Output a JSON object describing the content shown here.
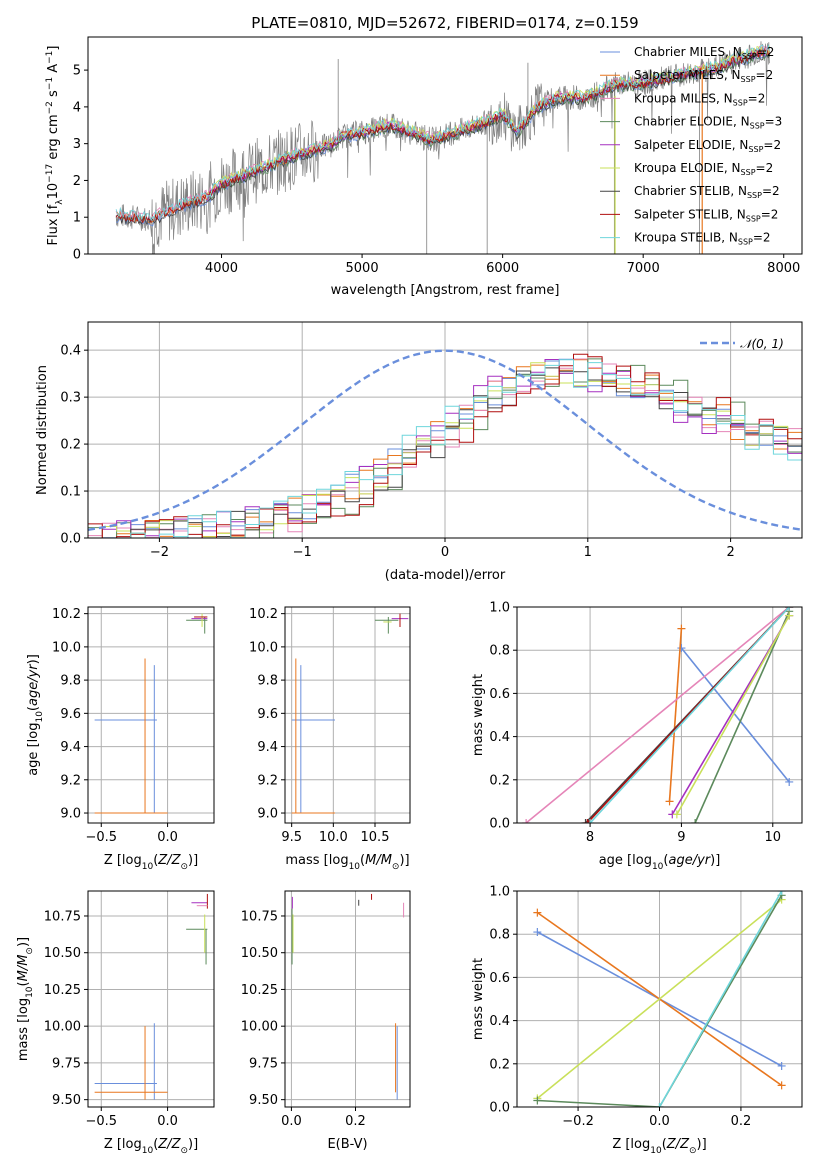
{
  "colors": {
    "chabrier_miles": "#6a8fdc",
    "salpeter_miles": "#e8771f",
    "kroupa_miles": "#e585b8",
    "chabrier_elodie": "#5c8a5c",
    "salpeter_elodie": "#a530c0",
    "kroupa_elodie": "#c9e05a",
    "chabrier_stelib": "#444444",
    "salpeter_stelib": "#b00f0f",
    "kroupa_stelib": "#6fd6dc",
    "data": "#808080"
  },
  "chart_data": [
    {
      "type": "line",
      "title": "PLATE=0810, MJD=52672, FIBERID=0174, z=0.159",
      "xlabel": "wavelength [Angstrom, rest frame]",
      "ylabel": "Flux [f$_\\lambda$10$^{-17}$ erg cm$^{-2}$ s$^{-1}$ A$^{-1}$]",
      "xlim": [
        3050,
        8130
      ],
      "ylim": [
        0,
        5.9
      ],
      "xticks": [
        "4000",
        "5000",
        "6000",
        "7000",
        "8000"
      ],
      "yticks": [
        "0",
        "1",
        "2",
        "3",
        "4",
        "5"
      ],
      "grid": false,
      "legend_position": "upper right",
      "legend": [
        {
          "key": "chabrier_miles",
          "name": "Chabrier MILES, N",
          "sub": "SSP",
          "tail": "=2"
        },
        {
          "key": "salpeter_miles",
          "name": "Salpeter MILES, N",
          "sub": "SSP",
          "tail": "=2"
        },
        {
          "key": "kroupa_miles",
          "name": "Kroupa MILES, N",
          "sub": "SSP",
          "tail": "=2"
        },
        {
          "key": "chabrier_elodie",
          "name": "Chabrier ELODIE, N",
          "sub": "SSP",
          "tail": "=3"
        },
        {
          "key": "salpeter_elodie",
          "name": "Salpeter ELODIE, N",
          "sub": "SSP",
          "tail": "=2"
        },
        {
          "key": "kroupa_elodie",
          "name": "Kroupa ELODIE, N",
          "sub": "SSP",
          "tail": "=2"
        },
        {
          "key": "chabrier_stelib",
          "name": "Chabrier STELIB, N",
          "sub": "SSP",
          "tail": "=2"
        },
        {
          "key": "salpeter_stelib",
          "name": "Salpeter STELIB, N",
          "sub": "SSP",
          "tail": "=2"
        },
        {
          "key": "kroupa_stelib",
          "name": "Kroupa STELIB, N",
          "sub": "SSP",
          "tail": "=2"
        }
      ],
      "continuum": {
        "x": [
          3250,
          3500,
          3700,
          3900,
          4000,
          4200,
          4500,
          4800,
          4850,
          5000,
          5200,
          5500,
          5700,
          5900,
          6000,
          6100,
          6250,
          6400,
          6600,
          6800,
          7000,
          7200,
          7500,
          7800,
          7900
        ],
        "y": [
          1.05,
          0.95,
          1.3,
          1.55,
          1.9,
          2.2,
          2.65,
          3.0,
          3.2,
          3.3,
          3.5,
          3.1,
          3.35,
          3.6,
          3.8,
          3.3,
          4.0,
          4.25,
          4.25,
          4.6,
          4.65,
          4.8,
          5.05,
          5.45,
          5.5
        ]
      }
    },
    {
      "type": "line",
      "xlabel": "(data-model)/error",
      "ylabel": "Normed distribution",
      "xlim": [
        -2.5,
        2.5
      ],
      "ylim": [
        0,
        0.46
      ],
      "xticks": [
        "−2",
        "−1",
        "0",
        "1",
        "2"
      ],
      "yticks": [
        "0.0",
        "0.1",
        "0.2",
        "0.3",
        "0.4"
      ],
      "grid": true,
      "legend_position": "upper right",
      "legend": [
        {
          "name": "𝒩(0, 1)",
          "style": "dashed"
        }
      ],
      "series": [
        {
          "key": "chabrier_stelib",
          "x": [
            -2.4,
            -2.0,
            -1.6,
            -1.2,
            -0.8,
            -0.4,
            0.0,
            0.3,
            0.6,
            0.9,
            1.2,
            1.5,
            1.8,
            2.1,
            2.4
          ],
          "y": [
            0.0,
            0.01,
            0.02,
            0.04,
            0.07,
            0.14,
            0.22,
            0.3,
            0.34,
            0.36,
            0.34,
            0.31,
            0.27,
            0.24,
            0.2
          ]
        }
      ]
    },
    {
      "type": "scatter",
      "xlabel": "Z [log$_{10}$(Z/Z$_\\odot$)]",
      "ylabel": "age  [log$_{10}$(age/yr)]",
      "xlim": [
        -0.6,
        0.35
      ],
      "ylim": [
        8.94,
        10.24
      ],
      "xticks": [
        "−0.5",
        "0.0"
      ],
      "yticks": [
        "9.0",
        "9.2",
        "9.4",
        "9.6",
        "9.8",
        "10.0",
        "10.2"
      ],
      "grid": true
    },
    {
      "type": "scatter",
      "xlabel": "mass [log$_{10}$(M/M$_\\odot$)]",
      "xlim": [
        9.42,
        10.92
      ],
      "ylim": [
        8.94,
        10.24
      ],
      "xticks": [
        "9.5",
        "10.0",
        "10.5"
      ],
      "yticks": [
        "9.0",
        "9.2",
        "9.4",
        "9.6",
        "9.8",
        "10.0",
        "10.2"
      ],
      "grid": true
    },
    {
      "type": "line",
      "xlabel": "age  [log$_{10}$(age/yr)]",
      "ylabel": "mass weight",
      "xlim": [
        7.2,
        10.32
      ],
      "ylim": [
        0,
        1.0
      ],
      "xticks": [
        "8",
        "9",
        "10"
      ],
      "yticks": [
        "0.0",
        "0.2",
        "0.4",
        "0.6",
        "0.8",
        "1.0"
      ],
      "grid": true,
      "series": [
        {
          "key": "chabrier_miles",
          "x": [
            9.0,
            10.18
          ],
          "y": [
            0.81,
            0.19
          ]
        },
        {
          "key": "salpeter_miles",
          "x": [
            8.87,
            9.0
          ],
          "y": [
            0.1,
            0.9
          ]
        },
        {
          "key": "kroupa_miles",
          "x": [
            7.3,
            10.18
          ],
          "y": [
            0.0,
            1.0
          ]
        },
        {
          "key": "chabrier_elodie",
          "x": [
            9.15,
            10.18
          ],
          "y": [
            0.0,
            0.98
          ]
        },
        {
          "key": "salpeter_elodie",
          "x": [
            8.9,
            10.18
          ],
          "y": [
            0.04,
            0.96
          ]
        },
        {
          "key": "kroupa_elodie",
          "x": [
            8.95,
            10.18
          ],
          "y": [
            0.04,
            0.96
          ]
        },
        {
          "key": "chabrier_stelib",
          "x": [
            7.95,
            10.18
          ],
          "y": [
            0.0,
            1.0
          ]
        },
        {
          "key": "salpeter_stelib",
          "x": [
            7.97,
            10.18
          ],
          "y": [
            0.0,
            1.0
          ]
        },
        {
          "key": "kroupa_stelib",
          "x": [
            8.0,
            10.18
          ],
          "y": [
            0.0,
            1.0
          ]
        }
      ]
    },
    {
      "type": "scatter",
      "xlabel": "Z [log$_{10}$(Z/Z$_\\odot$)]",
      "ylabel": "mass [log$_{10}$(M/M$_\\odot$)]",
      "xlim": [
        -0.6,
        0.35
      ],
      "ylim": [
        9.45,
        10.92
      ],
      "xticks": [
        "−0.5",
        "0.0"
      ],
      "yticks": [
        "9.50",
        "9.75",
        "10.00",
        "10.25",
        "10.50",
        "10.75"
      ],
      "grid": true
    },
    {
      "type": "scatter",
      "xlabel": "E(B-V)",
      "xlim": [
        -0.02,
        0.37
      ],
      "ylim": [
        9.45,
        10.92
      ],
      "xticks": [
        "0.0",
        "0.2"
      ],
      "yticks": [
        "9.50",
        "9.75",
        "10.00",
        "10.25",
        "10.50",
        "10.75"
      ],
      "grid": true
    },
    {
      "type": "line",
      "xlabel": "Z [log$_{10}$(Z/Z$_\\odot$)]",
      "ylabel": "mass weight",
      "xlim": [
        -0.35,
        0.35
      ],
      "ylim": [
        0,
        1.0
      ],
      "xticks": [
        "−0.2",
        "0.0",
        "0.2"
      ],
      "yticks": [
        "0.0",
        "0.2",
        "0.4",
        "0.6",
        "0.8",
        "1.0"
      ],
      "grid": true,
      "series": [
        {
          "key": "chabrier_miles",
          "x": [
            -0.3,
            0.3
          ],
          "y": [
            0.81,
            0.19
          ]
        },
        {
          "key": "salpeter_miles",
          "x": [
            -0.3,
            0.3
          ],
          "y": [
            0.9,
            0.1
          ]
        },
        {
          "key": "kroupa_elodie",
          "x": [
            -0.3,
            0.3
          ],
          "y": [
            0.04,
            0.96
          ]
        },
        {
          "key": "chabrier_elodie",
          "x": [
            -0.3,
            0.0,
            0.3
          ],
          "y": [
            0.03,
            0.0,
            0.98
          ]
        },
        {
          "key": "kroupa_stelib",
          "x": [
            0.0,
            0.3
          ],
          "y": [
            0.0,
            1.0
          ]
        }
      ]
    }
  ]
}
